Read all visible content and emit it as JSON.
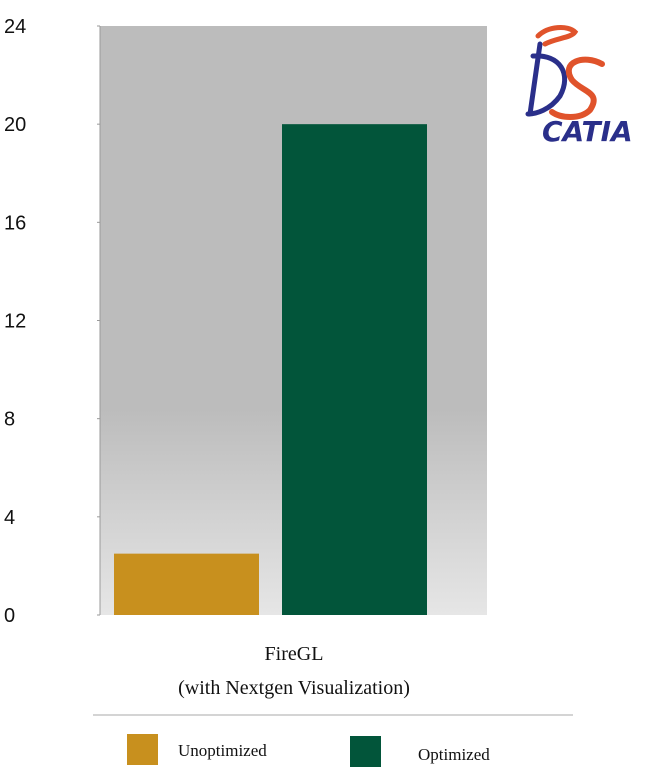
{
  "logo": {
    "text": "CATIA",
    "monogram": "DS",
    "colors": {
      "primary": "#2a2f8a",
      "accent": "#e0532b"
    }
  },
  "colors": {
    "plot_background_top": "#bcbcbc",
    "plot_background_bottom": "#e6e6e6",
    "axis": "#9a9a9a",
    "divider": "#aaaaaa"
  },
  "chart_data": {
    "type": "bar",
    "title": "",
    "xlabel": "",
    "ylabel": "",
    "categories": [
      "FireGL\n(with Nextgen Visualization)"
    ],
    "category_lines": [
      "FireGL",
      "(with Nextgen Visualization)"
    ],
    "ylim": [
      0,
      24
    ],
    "yticks": [
      0,
      4,
      8,
      12,
      16,
      20,
      24
    ],
    "grid": false,
    "legend_position": "bottom",
    "series": [
      {
        "name": "Unoptimized",
        "color": "#c8901e",
        "values": [
          2.5
        ]
      },
      {
        "name": "Optimized",
        "color": "#02553a",
        "values": [
          20
        ]
      }
    ]
  }
}
